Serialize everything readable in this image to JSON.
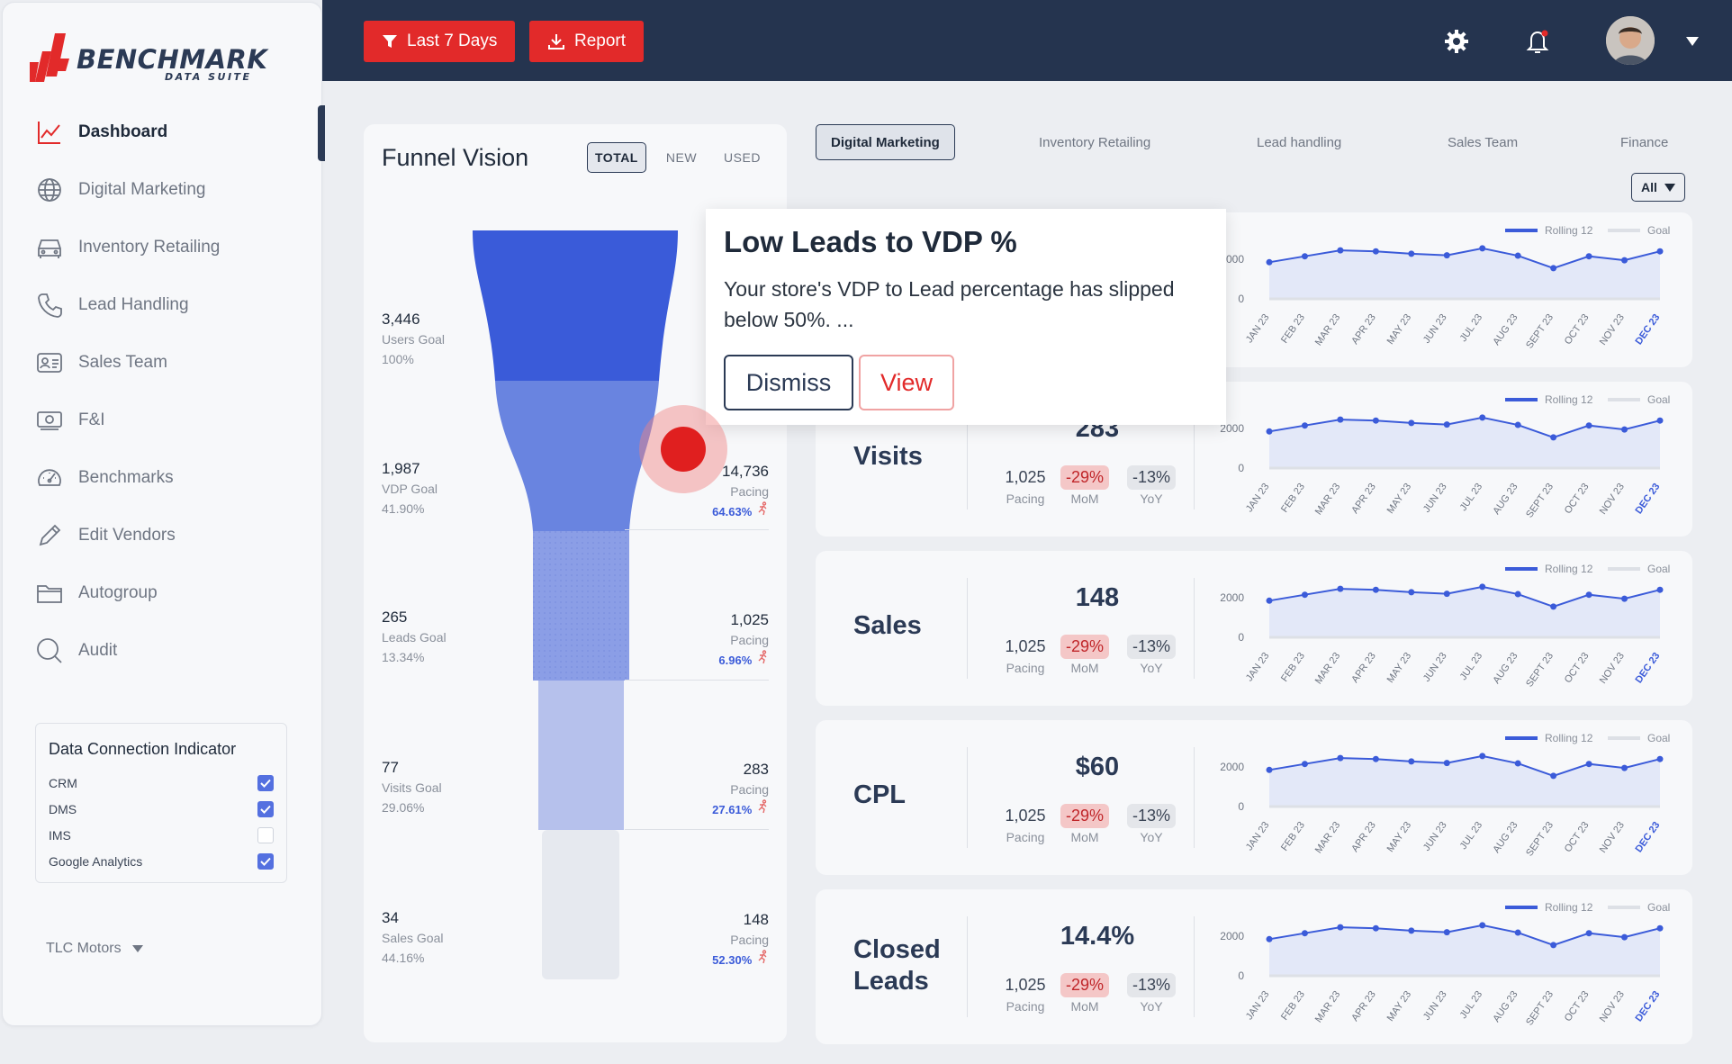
{
  "brand": {
    "name": "BENCHMARK",
    "sub": "DATA SUITE"
  },
  "sidebar": {
    "items": [
      {
        "label": "Dashboard",
        "icon": "chart-line-icon"
      },
      {
        "label": "Digital Marketing",
        "icon": "globe-icon"
      },
      {
        "label": "Inventory Retailing",
        "icon": "car-icon"
      },
      {
        "label": "Lead Handling",
        "icon": "phone-icon"
      },
      {
        "label": "Sales Team",
        "icon": "id-card-icon"
      },
      {
        "label": "F&I",
        "icon": "money-icon"
      },
      {
        "label": "Benchmarks",
        "icon": "gauge-icon"
      },
      {
        "label": "Edit Vendors",
        "icon": "pencil-icon"
      },
      {
        "label": "Autogroup",
        "icon": "folder-icon"
      },
      {
        "label": "Audit",
        "icon": "search-icon"
      }
    ],
    "active_index": 0
  },
  "data_connection": {
    "title": "Data Connection Indicator",
    "items": [
      {
        "label": "CRM",
        "checked": true
      },
      {
        "label": "DMS",
        "checked": true
      },
      {
        "label": "IMS",
        "checked": false
      },
      {
        "label": "Google Analytics",
        "checked": true
      }
    ]
  },
  "store_selector": {
    "label": "TLC Motors"
  },
  "topbar": {
    "filter_label": "Last 7 Days",
    "report_label": "Report"
  },
  "funnel": {
    "title": "Funnel Vision",
    "tabs": [
      "TOTAL",
      "NEW",
      "USED"
    ],
    "active_tab": "TOTAL",
    "stages": [
      {
        "goal_value": "3,446",
        "goal_label": "Users Goal",
        "goal_pct": "100%",
        "actual": "",
        "actual_label": "",
        "actual_pct": ""
      },
      {
        "goal_value": "1,987",
        "goal_label": "VDP Goal",
        "goal_pct": "41.90%",
        "actual": "14,736",
        "actual_label": "Pacing",
        "actual_pct": "64.63%"
      },
      {
        "goal_value": "265",
        "goal_label": "Leads Goal",
        "goal_pct": "13.34%",
        "actual": "1,025",
        "actual_label": "Pacing",
        "actual_pct": "6.96%"
      },
      {
        "goal_value": "77",
        "goal_label": "Visits Goal",
        "goal_pct": "29.06%",
        "actual": "283",
        "actual_label": "Pacing",
        "actual_pct": "27.61%"
      },
      {
        "goal_value": "34",
        "goal_label": "Sales Goal",
        "goal_pct": "44.16%",
        "actual": "148",
        "actual_label": "Pacing",
        "actual_pct": "52.30%"
      }
    ]
  },
  "category_tabs": [
    "Digital Marketing",
    "Inventory Retailing",
    "Lead handling",
    "Sales Team",
    "Finance"
  ],
  "active_category": "Digital Marketing",
  "filter_select": {
    "value": "All"
  },
  "legend": {
    "rolling": "Rolling 12",
    "goal": "Goal"
  },
  "axis": {
    "y_ticks": [
      "2000",
      "0"
    ],
    "months": [
      "JAN 23",
      "FEB 23",
      "MAR 23",
      "APR 23",
      "MAY 23",
      "JUN 23",
      "JUL 23",
      "AUG 23",
      "SEPT 23",
      "OCT 23",
      "NOV 23",
      "DEC 23"
    ]
  },
  "spark_values": [
    1850,
    2150,
    2450,
    2400,
    2280,
    2200,
    2550,
    2180,
    1550,
    2150,
    1950,
    2400
  ],
  "cards": [
    {
      "title": "",
      "value": "",
      "pacing": "",
      "pacing_label": "",
      "mom": "",
      "mom_label": "",
      "yoy": "",
      "yoy_label": ""
    },
    {
      "title": "Visits",
      "value": "283",
      "pacing": "1,025",
      "pacing_label": "Pacing",
      "mom": "-29%",
      "mom_label": "MoM",
      "yoy": "-13%",
      "yoy_label": "YoY"
    },
    {
      "title": "Sales",
      "value": "148",
      "pacing": "1,025",
      "pacing_label": "Pacing",
      "mom": "-29%",
      "mom_label": "MoM",
      "yoy": "-13%",
      "yoy_label": "YoY"
    },
    {
      "title": "CPL",
      "value": "$60",
      "pacing": "1,025",
      "pacing_label": "Pacing",
      "mom": "-29%",
      "mom_label": "MoM",
      "yoy": "-13%",
      "yoy_label": "YoY"
    },
    {
      "title_line1": "Closed",
      "title_line2": "Leads",
      "value": "14.4%",
      "pacing": "1,025",
      "pacing_label": "Pacing",
      "mom": "-29%",
      "mom_label": "MoM",
      "yoy": "-13%",
      "yoy_label": "YoY"
    }
  ],
  "alert": {
    "title": "Low Leads to VDP %",
    "body": "Your store's VDP to Lead percentage has slipped below 50%. ...",
    "dismiss_label": "Dismiss",
    "view_label": "View"
  },
  "colors": {
    "accent_red": "#e22a2a",
    "navy": "#25344f",
    "funnel_blue": "#3b5bd9",
    "line_blue": "#3b5bd9"
  }
}
